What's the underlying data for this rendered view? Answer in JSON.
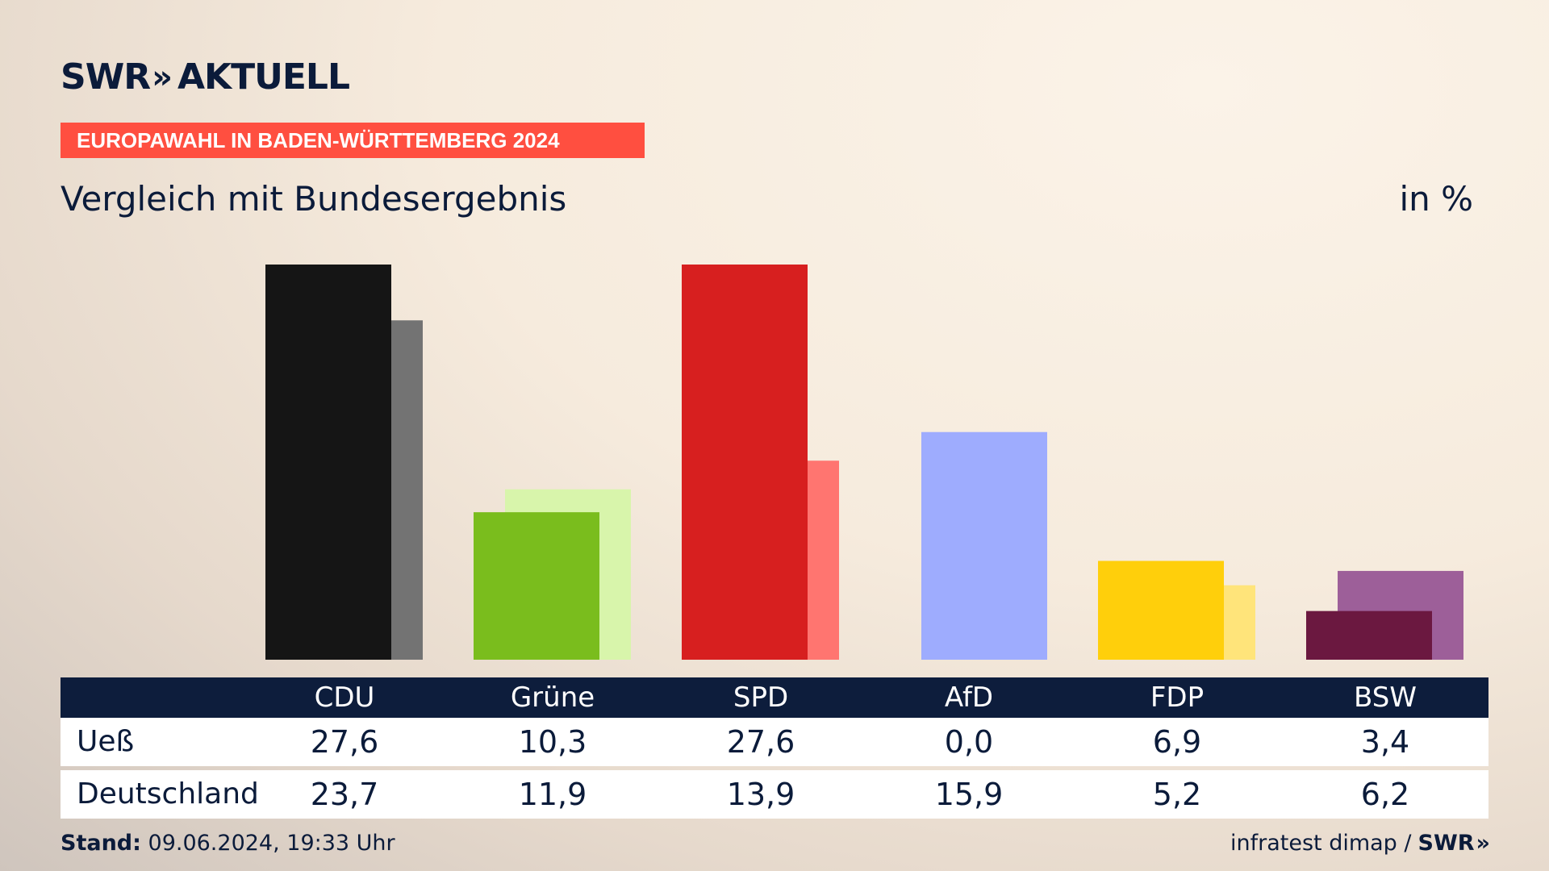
{
  "header": {
    "logo_brand": "SWR",
    "logo_chevrons": "»",
    "logo_text": "AKTUELL",
    "tag": "EUROPAWAHL IN BADEN-WÜRTTEMBERG 2024",
    "subtitle": "Vergleich mit Bundesergebnis",
    "unit": "in %"
  },
  "table": {
    "rows": [
      {
        "label": "Ueß"
      },
      {
        "label": "Deutschland"
      }
    ]
  },
  "footer": {
    "stand_label": "Stand:",
    "stand_value": "09.06.2024, 19:33 Uhr",
    "source": "infratest dimap /",
    "source_brand": "SWR",
    "source_chevrons": "»"
  },
  "chart_data": {
    "type": "bar",
    "categories": [
      "CDU",
      "Grüne",
      "SPD",
      "AfD",
      "FDP",
      "BSW"
    ],
    "series": [
      {
        "name": "Ueß",
        "values": [
          27.6,
          10.3,
          27.6,
          0.0,
          6.9,
          3.4
        ],
        "colors": [
          "#151515",
          "#7abd1d",
          "#d71f1f",
          "#9eacfe",
          "#ffcf0b",
          "#6b1840"
        ]
      },
      {
        "name": "Deutschland",
        "values": [
          23.7,
          11.9,
          13.9,
          15.9,
          5.2,
          6.2
        ],
        "colors": [
          "#737373",
          "#d8f5ab",
          "#ff7570",
          "#9eacfe",
          "#ffe47a",
          "#9d5f99"
        ]
      }
    ],
    "value_labels": [
      [
        "27,6",
        "10,3",
        "27,6",
        "0,0",
        "6,9",
        "3,4"
      ],
      [
        "23,7",
        "11,9",
        "13,9",
        "15,9",
        "5,2",
        "6,2"
      ]
    ],
    "ylim": [
      0,
      27.6
    ]
  }
}
